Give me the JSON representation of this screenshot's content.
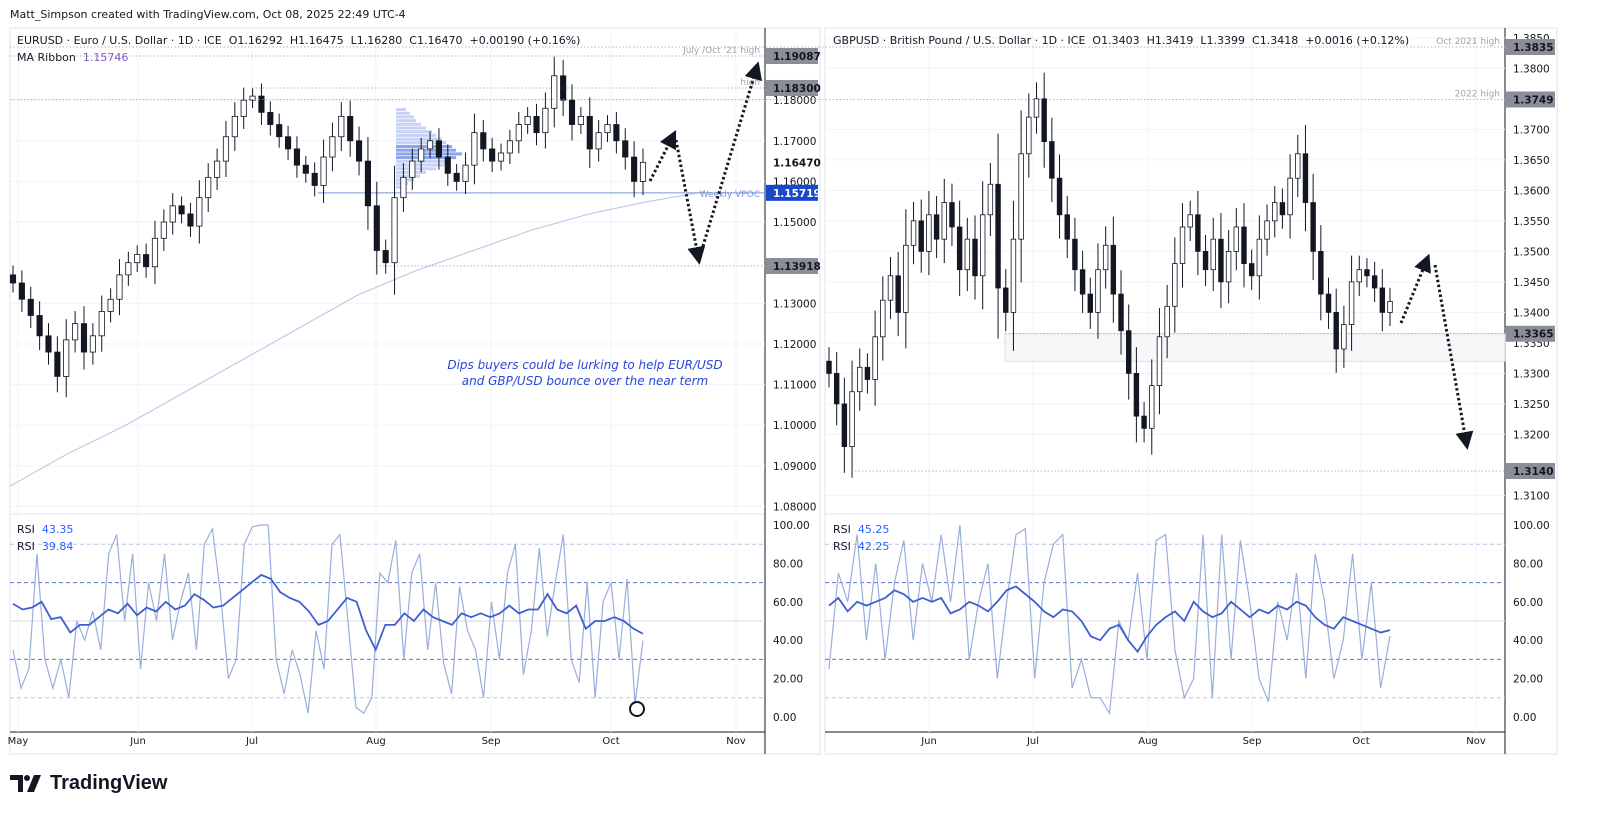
{
  "header": {
    "credit": "Matt_Simpson created with TradingView.com, Oct 08, 2025 22:49 UTC-4"
  },
  "footer": {
    "brand": "TradingView"
  },
  "annotation": "Dips buyers could be lurking to help EUR/USD and GBP/USD bounce over the near term",
  "annotation_lines": [
    "Dips buyers could be lurking to help EUR/USD",
    "and GBP/USD bounce over the near term"
  ],
  "colors": {
    "up": "#ffffff",
    "down": "#131722",
    "rsi_fast": "#9aaedc",
    "rsi_slow": "#3f5fd0",
    "ma_ribbon": "#c9c7e6",
    "vpoc": "#7b93d6",
    "price_tag": "#8b8e96",
    "current_tag": "#1848cc"
  },
  "chart_data": [
    {
      "type": "candlestick",
      "symbol": "EURUSD",
      "legend": "EURUSD · Euro / U.S. Dollar · 1D · ICE",
      "timeframe": "1D",
      "ohlc": {
        "o_label": "O",
        "o": "1.16292",
        "h_label": "H",
        "h": "1.16475",
        "l_label": "L",
        "l": "1.16280",
        "c_label": "C",
        "c": "1.16470",
        "change": "+0.00190 (+0.16%)"
      },
      "indicator": {
        "name": "MA Ribbon",
        "value": "1.15746"
      },
      "x_ticks": [
        "May",
        "Jun",
        "Jul",
        "Aug",
        "Sep",
        "Oct",
        "Nov"
      ],
      "y_ticks": [
        "1.18000",
        "1.17000",
        "1.16000",
        "1.15000",
        "1.13000",
        "1.12000",
        "1.11000",
        "1.10000",
        "1.09000",
        "1.08000"
      ],
      "price_tags": [
        {
          "value": "1.19087",
          "kind": "level"
        },
        {
          "value": "1.18300",
          "kind": "level"
        },
        {
          "value": "1.16470",
          "kind": "last"
        },
        {
          "value": "1.15719",
          "kind": "current"
        },
        {
          "value": "1.13918",
          "kind": "level"
        }
      ],
      "levels": [
        {
          "price": 1.19087,
          "label": "July /Oct '21 high"
        },
        {
          "price": 1.183,
          "label": "high"
        },
        {
          "price": 1.15719,
          "label": "Weekly VPOC"
        },
        {
          "price": 1.13918,
          "label": ""
        }
      ],
      "ylim": [
        1.075,
        1.2
      ],
      "closes": [
        1.135,
        1.131,
        1.127,
        1.122,
        1.118,
        1.112,
        1.121,
        1.125,
        1.118,
        1.122,
        1.128,
        1.131,
        1.137,
        1.14,
        1.142,
        1.139,
        1.146,
        1.15,
        1.154,
        1.152,
        1.149,
        1.156,
        1.161,
        1.165,
        1.171,
        1.176,
        1.18,
        1.181,
        1.177,
        1.174,
        1.171,
        1.168,
        1.164,
        1.162,
        1.159,
        1.166,
        1.171,
        1.176,
        1.17,
        1.165,
        1.154,
        1.143,
        1.14,
        1.156,
        1.161,
        1.165,
        1.168,
        1.17,
        1.166,
        1.162,
        1.16,
        1.164,
        1.172,
        1.168,
        1.165,
        1.167,
        1.17,
        1.174,
        1.176,
        1.172,
        1.178,
        1.186,
        1.18,
        1.174,
        1.176,
        1.168,
        1.172,
        1.174,
        1.17,
        1.166,
        1.16,
        1.1647
      ],
      "ma_ribbon": [
        1.085,
        1.093,
        1.1,
        1.108,
        1.116,
        1.124,
        1.132,
        1.138,
        1.143,
        1.148,
        1.152,
        1.155,
        1.1575
      ],
      "rsi": {
        "label": "RSI",
        "values": [
          "43.35",
          "39.84"
        ],
        "slow": [
          59,
          56,
          57,
          60,
          51,
          52,
          44,
          48,
          48,
          52,
          56,
          54,
          59,
          53,
          57,
          55,
          60,
          56,
          58,
          64,
          61,
          57,
          58,
          62,
          66,
          70,
          74,
          72,
          65,
          62,
          60,
          55,
          48,
          50,
          56,
          62,
          60,
          45,
          35,
          48,
          48,
          54,
          50,
          56,
          52,
          50,
          48,
          54,
          52,
          54,
          52,
          54,
          58,
          54,
          56,
          56,
          64,
          56,
          54,
          58,
          46,
          50,
          50,
          52,
          50,
          46,
          43.35
        ],
        "fast": [
          35,
          15,
          25,
          85,
          30,
          15,
          30,
          10,
          50,
          40,
          55,
          35,
          85,
          95,
          50,
          85,
          25,
          70,
          50,
          85,
          40,
          60,
          75,
          35,
          90,
          98,
          65,
          20,
          30,
          90,
          99,
          100,
          100,
          30,
          12,
          35,
          22,
          2,
          45,
          25,
          90,
          95,
          50,
          5,
          2,
          10,
          75,
          70,
          92,
          30,
          75,
          85,
          35,
          70,
          28,
          12,
          68,
          45,
          35,
          10,
          60,
          30,
          75,
          90,
          22,
          45,
          88,
          42,
          70,
          95,
          30,
          18,
          70,
          10,
          60,
          70,
          30,
          72,
          7,
          39.84
        ],
        "levels": [
          90,
          70,
          50,
          30,
          10
        ],
        "y_ticks": [
          "100.00",
          "80.00",
          "60.00",
          "40.00",
          "20.00",
          "0.00"
        ]
      }
    },
    {
      "type": "candlestick",
      "symbol": "GBPUSD",
      "legend": "GBPUSD · British Pound / U.S. Dollar · 1D · ICE",
      "timeframe": "1D",
      "ohlc": {
        "o_label": "O",
        "o": "1.3403",
        "h_label": "H",
        "h": "1.3419",
        "l_label": "L",
        "l": "1.3399",
        "c_label": "C",
        "c": "1.3418",
        "change": "+0.0016 (+0.12%)"
      },
      "x_ticks": [
        "Jun",
        "Jul",
        "Aug",
        "Sep",
        "Oct",
        "Nov"
      ],
      "y_ticks": [
        "1.3850",
        "1.3800",
        "1.3700",
        "1.3650",
        "1.3600",
        "1.3550",
        "1.3500",
        "1.3450",
        "1.3400",
        "1.3350",
        "1.3300",
        "1.3250",
        "1.3200",
        "1.3100"
      ],
      "price_tags": [
        {
          "value": "1.3835",
          "kind": "level"
        },
        {
          "value": "1.3749",
          "kind": "level"
        },
        {
          "value": "1.3365",
          "kind": "level"
        },
        {
          "value": "1.3140",
          "kind": "level"
        }
      ],
      "levels": [
        {
          "price": 1.3835,
          "label": "Oct 2021 high"
        },
        {
          "price": 1.3749,
          "label": "2022 high"
        },
        {
          "price": 1.3365,
          "label": ""
        },
        {
          "price": 1.314,
          "label": ""
        }
      ],
      "zone": [
        1.332,
        1.3365
      ],
      "ylim": [
        1.307,
        1.386
      ],
      "closes": [
        1.33,
        1.325,
        1.318,
        1.327,
        1.331,
        1.329,
        1.336,
        1.342,
        1.346,
        1.34,
        1.351,
        1.355,
        1.35,
        1.356,
        1.352,
        1.358,
        1.354,
        1.347,
        1.352,
        1.346,
        1.356,
        1.361,
        1.344,
        1.34,
        1.352,
        1.366,
        1.372,
        1.375,
        1.368,
        1.362,
        1.356,
        1.352,
        1.347,
        1.343,
        1.34,
        1.347,
        1.351,
        1.343,
        1.337,
        1.33,
        1.323,
        1.321,
        1.328,
        1.336,
        1.341,
        1.348,
        1.354,
        1.356,
        1.35,
        1.347,
        1.352,
        1.345,
        1.35,
        1.354,
        1.348,
        1.346,
        1.352,
        1.355,
        1.358,
        1.356,
        1.362,
        1.366,
        1.358,
        1.35,
        1.343,
        1.34,
        1.334,
        1.338,
        1.345,
        1.347,
        1.346,
        1.344,
        1.34,
        1.3418
      ],
      "rsi": {
        "label": "RSI",
        "values": [
          "45.25",
          "42.25"
        ],
        "slow": [
          58,
          62,
          55,
          60,
          58,
          60,
          62,
          66,
          64,
          60,
          62,
          60,
          62,
          54,
          56,
          60,
          58,
          55,
          60,
          66,
          68,
          64,
          60,
          55,
          52,
          56,
          55,
          50,
          42,
          40,
          46,
          48,
          40,
          34,
          42,
          48,
          52,
          55,
          50,
          60,
          55,
          52,
          54,
          60,
          56,
          52,
          56,
          54,
          58,
          56,
          60,
          58,
          52,
          48,
          46,
          52,
          50,
          48,
          46,
          44,
          45.25
        ],
        "fast": [
          25,
          75,
          60,
          95,
          40,
          80,
          30,
          70,
          92,
          40,
          80,
          60,
          95,
          60,
          100,
          30,
          60,
          80,
          20,
          60,
          95,
          98,
          20,
          70,
          90,
          95,
          15,
          30,
          10,
          10,
          2,
          50,
          40,
          75,
          30,
          92,
          95,
          35,
          10,
          20,
          95,
          10,
          95,
          30,
          92,
          60,
          20,
          8,
          60,
          40,
          75,
          20,
          85,
          60,
          20,
          40,
          85,
          30,
          70,
          15,
          42.25
        ],
        "levels": [
          90,
          70,
          50,
          30,
          10
        ],
        "y_ticks": [
          "100.00",
          "80.00",
          "60.00",
          "40.00",
          "20.00",
          "0.00"
        ]
      }
    }
  ]
}
